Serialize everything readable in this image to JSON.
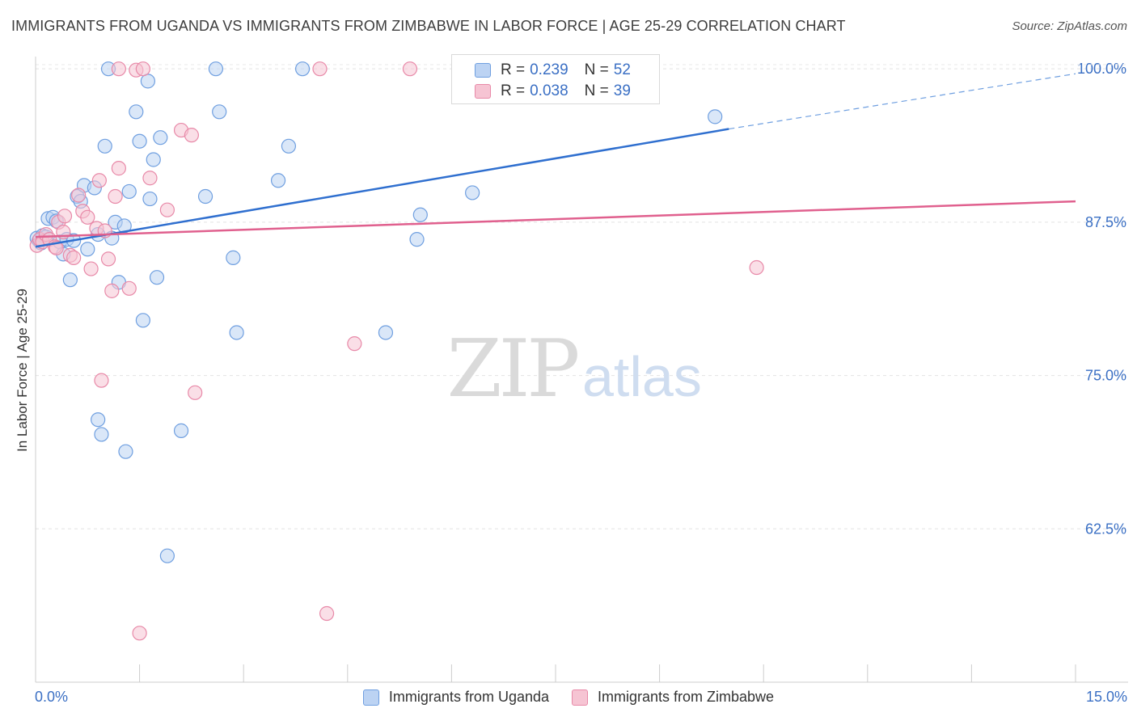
{
  "chart_data": {
    "type": "scatter",
    "title": "IMMIGRANTS FROM UGANDA VS IMMIGRANTS FROM ZIMBABWE IN LABOR FORCE | AGE 25-29 CORRELATION CHART",
    "source": "Source: ZipAtlas.com",
    "xlabel": "",
    "ylabel": "In Labor Force | Age 25-29",
    "xlim": [
      0,
      15
    ],
    "ylim": [
      50,
      101
    ],
    "x_tick_labels": [
      "0.0%",
      "15.0%"
    ],
    "y_ticks": [
      62.5,
      75.0,
      87.5,
      100.0
    ],
    "y_tick_labels": [
      "62.5%",
      "75.0%",
      "87.5%",
      "100.0%"
    ],
    "watermark": "ZIPatlas",
    "series": [
      {
        "name": "Immigrants from Uganda",
        "color": "#6f9fe0",
        "fill": "#bcd3f3",
        "R": "0.239",
        "N": "52",
        "trend": {
          "x0": 0.0,
          "y0": 85.5,
          "x1": 10.0,
          "y1": 95.1,
          "x_dash_end": 15.0,
          "y_dash_end": 99.6
        },
        "points": [
          [
            0.02,
            86.2
          ],
          [
            0.05,
            86.0
          ],
          [
            0.08,
            85.8
          ],
          [
            0.1,
            86.4
          ],
          [
            0.15,
            86.3
          ],
          [
            0.18,
            87.8
          ],
          [
            0.25,
            87.9
          ],
          [
            0.3,
            87.6
          ],
          [
            0.35,
            85.9
          ],
          [
            0.4,
            84.9
          ],
          [
            0.45,
            86.1
          ],
          [
            0.5,
            82.8
          ],
          [
            0.55,
            86.0
          ],
          [
            0.6,
            89.6
          ],
          [
            0.65,
            89.2
          ],
          [
            0.7,
            90.5
          ],
          [
            0.75,
            85.3
          ],
          [
            0.85,
            90.3
          ],
          [
            0.9,
            86.5
          ],
          [
            1.0,
            93.7
          ],
          [
            1.1,
            86.2
          ],
          [
            1.15,
            87.5
          ],
          [
            1.2,
            82.6
          ],
          [
            1.28,
            87.2
          ],
          [
            1.35,
            90.0
          ],
          [
            1.45,
            96.5
          ],
          [
            1.5,
            94.1
          ],
          [
            1.55,
            79.5
          ],
          [
            1.62,
            99.0
          ],
          [
            1.65,
            89.4
          ],
          [
            1.7,
            92.6
          ],
          [
            1.75,
            83.0
          ],
          [
            1.8,
            94.4
          ],
          [
            1.05,
            100.0
          ],
          [
            1.9,
            60.3
          ],
          [
            2.1,
            70.5
          ],
          [
            2.45,
            89.6
          ],
          [
            2.6,
            100.0
          ],
          [
            2.65,
            96.5
          ],
          [
            2.85,
            84.6
          ],
          [
            2.9,
            78.5
          ],
          [
            3.5,
            90.9
          ],
          [
            3.65,
            93.7
          ],
          [
            3.85,
            100.0
          ],
          [
            5.05,
            78.5
          ],
          [
            5.5,
            86.1
          ],
          [
            5.55,
            88.1
          ],
          [
            6.3,
            89.9
          ],
          [
            9.8,
            96.1
          ],
          [
            0.9,
            71.4
          ],
          [
            0.95,
            70.2
          ],
          [
            1.3,
            68.8
          ]
        ]
      },
      {
        "name": "Immigrants from Zimbabwe",
        "color": "#e889a8",
        "fill": "#f6c4d3",
        "R": "0.038",
        "N": "39",
        "trend": {
          "x0": 0.0,
          "y0": 86.3,
          "x1": 15.0,
          "y1": 89.2
        },
        "points": [
          [
            0.02,
            85.6
          ],
          [
            0.06,
            86.1
          ],
          [
            0.1,
            85.9
          ],
          [
            0.15,
            86.5
          ],
          [
            0.2,
            86.1
          ],
          [
            0.28,
            85.5
          ],
          [
            0.33,
            87.5
          ],
          [
            0.42,
            88.0
          ],
          [
            0.5,
            84.8
          ],
          [
            0.55,
            84.6
          ],
          [
            0.62,
            89.7
          ],
          [
            0.68,
            88.4
          ],
          [
            0.75,
            87.9
          ],
          [
            0.8,
            83.7
          ],
          [
            0.88,
            87.0
          ],
          [
            0.92,
            90.9
          ],
          [
            0.95,
            74.6
          ],
          [
            1.0,
            86.8
          ],
          [
            1.05,
            84.5
          ],
          [
            1.1,
            81.9
          ],
          [
            1.15,
            89.6
          ],
          [
            1.2,
            91.9
          ],
          [
            1.35,
            82.1
          ],
          [
            1.45,
            99.9
          ],
          [
            1.55,
            100.0
          ],
          [
            1.5,
            54.0
          ],
          [
            1.65,
            91.1
          ],
          [
            1.9,
            88.5
          ],
          [
            2.1,
            95.0
          ],
          [
            2.25,
            94.6
          ],
          [
            2.3,
            73.6
          ],
          [
            1.2,
            100.0
          ],
          [
            4.1,
            100.0
          ],
          [
            4.2,
            55.6
          ],
          [
            4.6,
            77.6
          ],
          [
            5.4,
            100.0
          ],
          [
            10.4,
            83.8
          ],
          [
            0.4,
            86.7
          ],
          [
            0.3,
            85.4
          ]
        ]
      }
    ]
  },
  "legend_top": {
    "rows": [
      {
        "r_label": "R =",
        "r_value": "0.239",
        "n_label": "N =",
        "n_value": "52"
      },
      {
        "r_label": "R =",
        "r_value": "0.038",
        "n_label": "N =",
        "n_value": "39"
      }
    ]
  }
}
